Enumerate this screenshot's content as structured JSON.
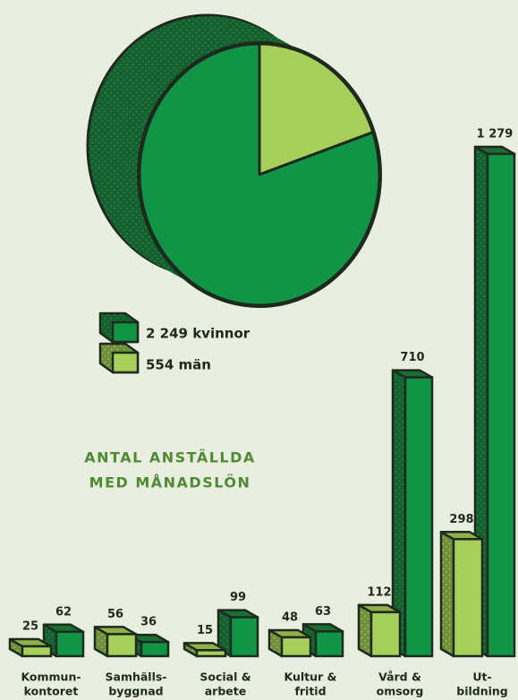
{
  "chart_data": [
    {
      "type": "pie3d",
      "values": [
        2249,
        554
      ],
      "value_labels": [
        "2 249 kvinnor",
        "554 män"
      ],
      "colors": [
        "#129446",
        "#a6cf5c"
      ]
    },
    {
      "type": "bar3d",
      "title": [
        "ANTAL ANSTÄLLDA",
        "MED MÅNADSLÖN"
      ],
      "categories": [
        [
          "Kommun-",
          "kontoret"
        ],
        [
          "Samhälls-",
          "byggnad"
        ],
        [
          "Social &",
          "arbete"
        ],
        [
          "Kultur &",
          "fritid"
        ],
        [
          "Vård &",
          "omsorg"
        ],
        [
          "Ut-",
          "bildning"
        ]
      ],
      "series": [
        {
          "color": "#a6cf5c",
          "values": [
            25,
            56,
            15,
            48,
            112,
            298
          ]
        },
        {
          "color": "#129446",
          "values": [
            62,
            36,
            99,
            63,
            710,
            1279
          ],
          "value_labels": [
            "62",
            "36",
            "99",
            "63",
            "710",
            "1 279"
          ]
        }
      ]
    }
  ]
}
